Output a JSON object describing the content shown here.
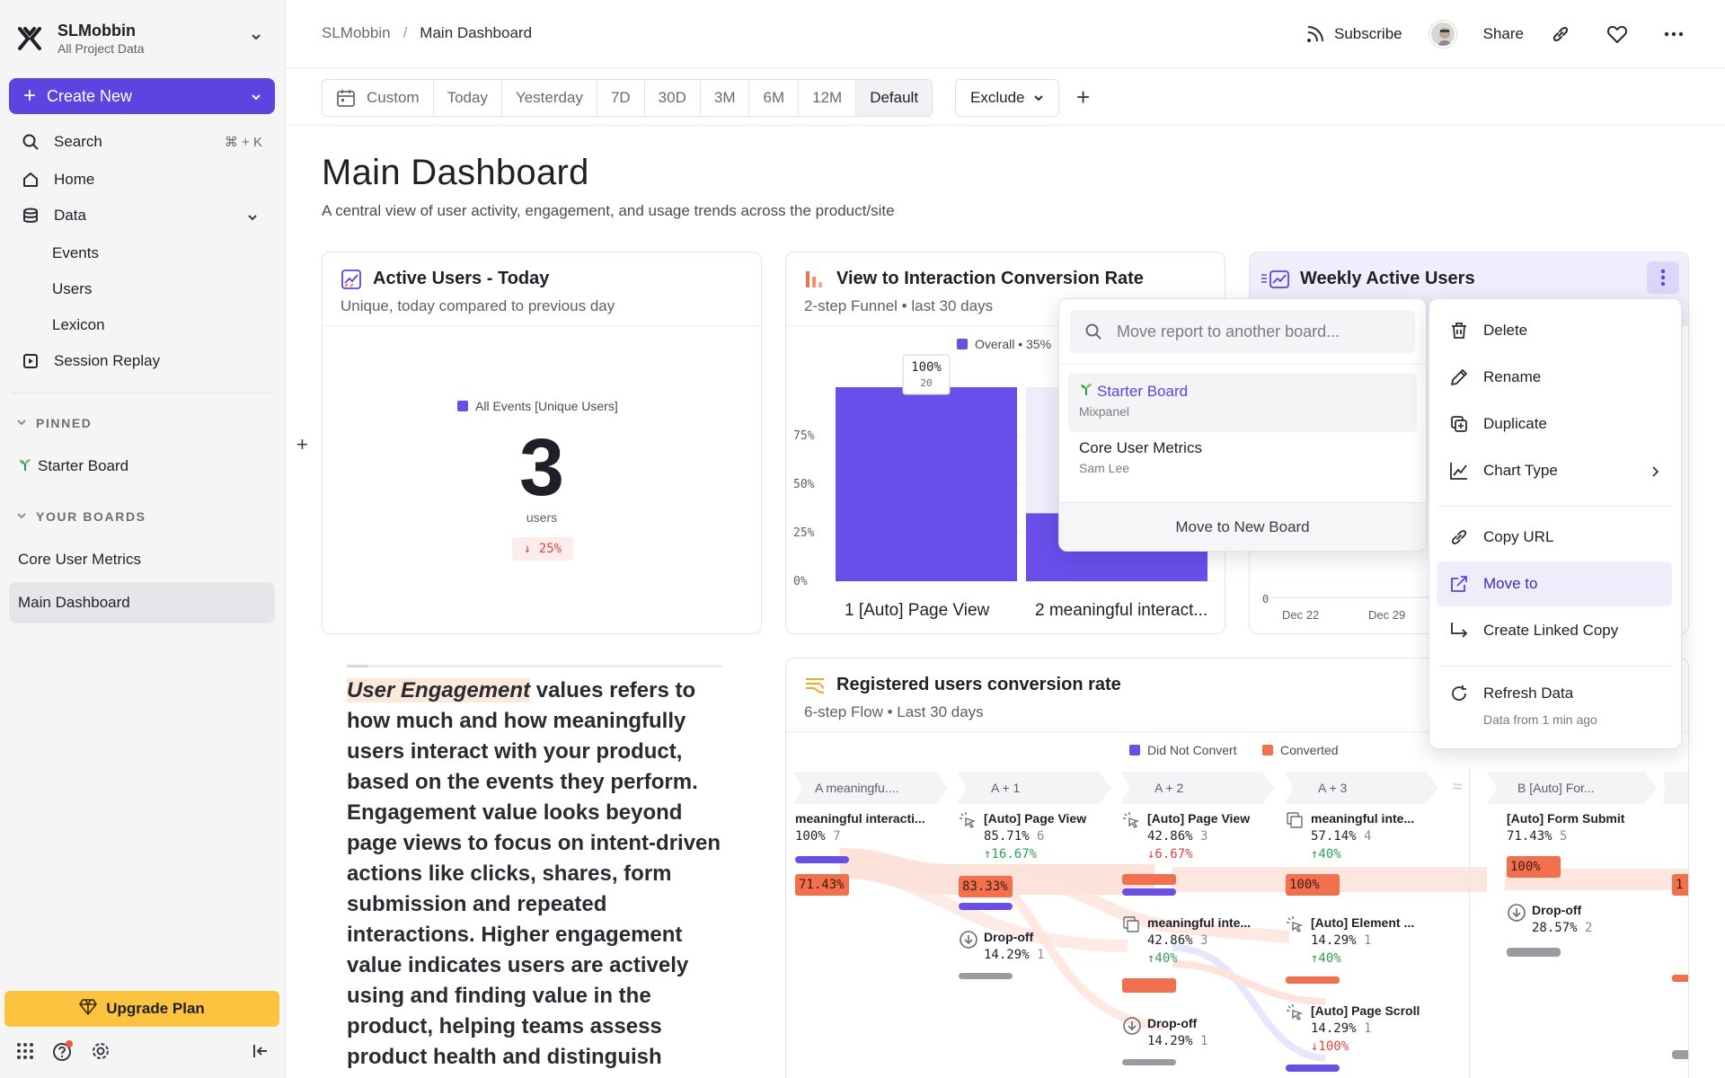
{
  "workspace": {
    "name": "SLMobbin",
    "subtitle": "All Project Data"
  },
  "sidebar": {
    "create_label": "Create New",
    "search_label": "Search",
    "search_shortcut": "⌘ + K",
    "home_label": "Home",
    "data_label": "Data",
    "data_children": [
      "Events",
      "Users",
      "Lexicon"
    ],
    "session_replay_label": "Session Replay",
    "pinned_heading": "PINNED",
    "pinned_items": [
      "Starter Board"
    ],
    "boards_heading": "YOUR BOARDS",
    "boards": [
      "Core User Metrics",
      "Main Dashboard"
    ],
    "upgrade_label": "Upgrade Plan"
  },
  "topbar": {
    "breadcrumb": [
      "SLMobbin",
      "Main Dashboard"
    ],
    "subscribe_label": "Subscribe",
    "share_label": "Share"
  },
  "filters": {
    "ranges": [
      "Custom",
      "Today",
      "Yesterday",
      "7D",
      "30D",
      "3M",
      "6M",
      "12M",
      "Default"
    ],
    "active_range": "Default",
    "exclude_label": "Exclude"
  },
  "page": {
    "title": "Main Dashboard",
    "description": "A central view of user activity, engagement, and usage trends across the product/site"
  },
  "cards": {
    "active_users": {
      "title": "Active Users - Today",
      "subtitle": "Unique, today compared to previous day",
      "legend": "All Events [Unique Users]",
      "value": "3",
      "unit": "users",
      "delta": "↓ 25%"
    },
    "conversion": {
      "title": "View to Interaction Conversion Rate",
      "subtitle": "2-step Funnel • last 30 days",
      "legend": "Overall • 35%"
    },
    "weekly": {
      "title": "Weekly Active Users"
    },
    "registered": {
      "title": "Registered users conversion rate",
      "subtitle": "6-step Flow • Last 30 days",
      "legend_not_convert": "Did Not Convert",
      "legend_converted": "Converted"
    }
  },
  "chart_data": [
    {
      "type": "bar",
      "title": "View to Interaction Conversion Rate",
      "categories": [
        "[Auto] Page View",
        "meaningful interact..."
      ],
      "step_numbers": [
        "1",
        "2"
      ],
      "values": [
        100,
        35
      ],
      "top_label": {
        "pct": "100%",
        "count": "20"
      },
      "ylim": [
        0,
        100
      ],
      "yticks": [
        "75%",
        "50%",
        "25%",
        "0%"
      ],
      "ytick_values": [
        75,
        50,
        25,
        0
      ]
    },
    {
      "type": "line",
      "title": "Weekly Active Users",
      "x": [
        "Dec 22",
        "Dec 29"
      ],
      "ytick_labels": [
        "0"
      ]
    }
  ],
  "text_widget": {
    "highlight": "User Engagement",
    "body": " values refers to how much and how meaningfully users interact with your product, based on the events they perform. Engagement value looks beyond page views to focus on intent-driven actions like clicks, shares, form submission and repeated interactions. Higher engagement value indicates users are actively using and finding value in the product, helping teams assess product health and distinguish"
  },
  "flow": {
    "columns": [
      "A  meaningfu....",
      "A + 1",
      "A + 2",
      "A + 3",
      "B  [Auto] For..."
    ],
    "nodes": [
      {
        "name": "meaningful interacti...",
        "pct": "100%",
        "count": "7",
        "delta": "",
        "badge": "71.43%"
      },
      {
        "name": "[Auto] Page View",
        "pct": "85.71%",
        "count": "6",
        "delta": "↑16.67%",
        "badge": "83.33%"
      },
      {
        "name": "Drop-off",
        "pct": "14.29%",
        "count": "1"
      },
      {
        "name": "[Auto] Page View",
        "pct": "42.86%",
        "count": "3",
        "delta": "↓6.67%"
      },
      {
        "name": "meaningful inte...",
        "pct": "42.86%",
        "count": "3",
        "delta": "↑40%"
      },
      {
        "name": "Drop-off",
        "pct": "14.29%",
        "count": "1"
      },
      {
        "name": "meaningful inte...",
        "pct": "57.14%",
        "count": "4",
        "delta": "↑40%",
        "badge": "100%"
      },
      {
        "name": "[Auto] Element ...",
        "pct": "14.29%",
        "count": "1",
        "delta": "↑40%"
      },
      {
        "name": "[Auto] Page Scroll",
        "pct": "14.29%",
        "count": "1",
        "delta": "↓100%"
      },
      {
        "name": "[Auto] Form Submit",
        "pct": "71.43%",
        "count": "5",
        "delta": "",
        "badge": "100%"
      },
      {
        "name": "Drop-off",
        "pct": "28.57%",
        "count": "2"
      }
    ],
    "edge_badge": "1"
  },
  "move_popover": {
    "placeholder": "Move report to another board...",
    "boards": [
      {
        "name": "Starter Board",
        "owner": "Mixpanel"
      },
      {
        "name": "Core User Metrics",
        "owner": "Sam Lee"
      }
    ],
    "footer": "Move to New Board"
  },
  "context_menu": {
    "items": [
      "Delete",
      "Rename",
      "Duplicate",
      "Chart Type",
      "Copy URL",
      "Move to",
      "Create Linked Copy",
      "Refresh Data"
    ],
    "refresh_sub": "Data from 1 min ago"
  },
  "colors": {
    "accent": "#5b44e0",
    "upgrade": "#fcc43e",
    "bar_primary": "#6a4eea",
    "bar_secondary": "#dcd6fb",
    "converted": "#f3704f",
    "negative": "#e0453e",
    "positive": "#2f9e5a"
  }
}
